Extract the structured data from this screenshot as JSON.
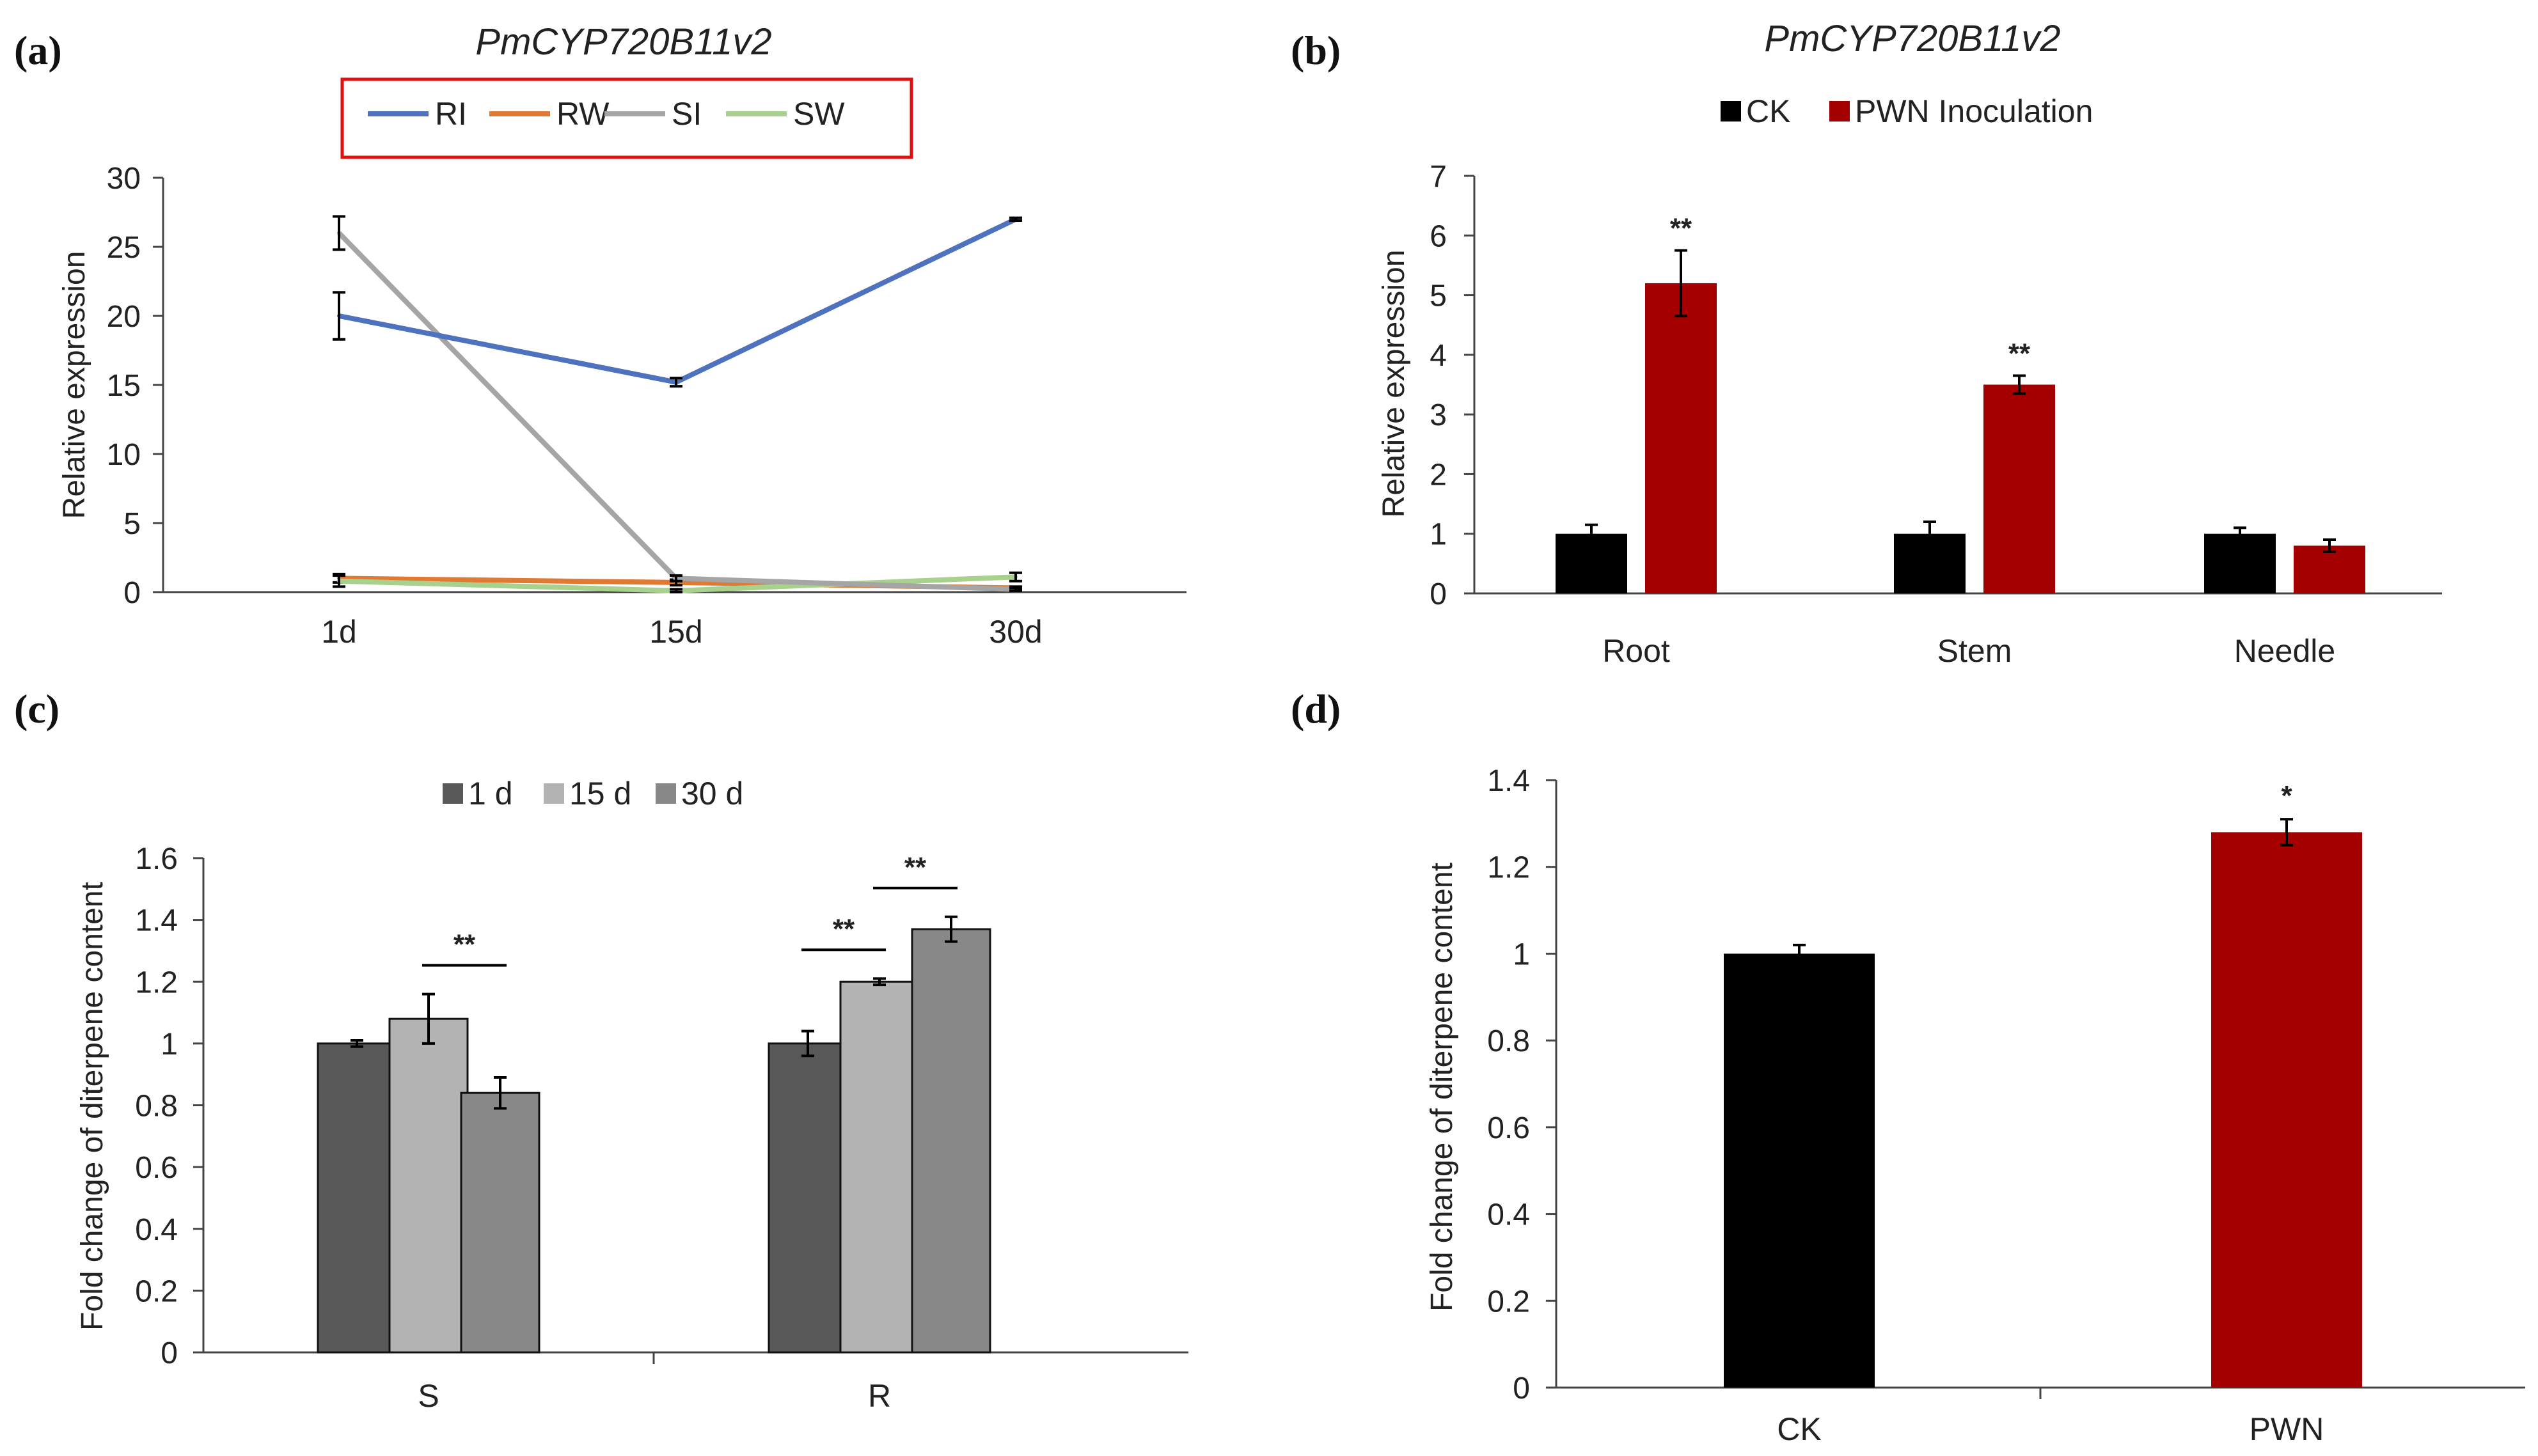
{
  "panels": {
    "a": "(a)",
    "b": "(b)",
    "c": "(c)",
    "d": "(d)"
  },
  "chart_data": [
    {
      "type": "line",
      "title": "PmCYP720B11v2",
      "xlabel": "",
      "ylabel": "Relative expression",
      "categories": [
        "1d",
        "15d",
        "30d"
      ],
      "ylim": [
        0,
        30
      ],
      "yticks": [
        0,
        5,
        10,
        15,
        20,
        25,
        30
      ],
      "legend_position": "top",
      "series": [
        {
          "name": "RI",
          "color": "#4f72be",
          "values": [
            20.0,
            15.2,
            27.0
          ],
          "errors": [
            1.7,
            0.3,
            0.1
          ]
        },
        {
          "name": "RW",
          "color": "#e07a33",
          "values": [
            1.0,
            0.7,
            0.3
          ],
          "errors": [
            0.3,
            0.2,
            0.1
          ]
        },
        {
          "name": "SI",
          "color": "#a5a5a5",
          "values": [
            26.0,
            1.0,
            0.2
          ],
          "errors": [
            1.2,
            0.2,
            0.1
          ]
        },
        {
          "name": "SW",
          "color": "#a9d18e",
          "values": [
            0.8,
            0.1,
            1.1
          ],
          "errors": [
            0.4,
            0.1,
            0.3
          ]
        }
      ]
    },
    {
      "type": "bar",
      "title": "PmCYP720B11v2",
      "xlabel": "",
      "ylabel": "Relative expression",
      "categories": [
        "Root",
        "Stem",
        "Needle"
      ],
      "ylim": [
        0,
        7
      ],
      "yticks": [
        0,
        1,
        2,
        3,
        4,
        5,
        6,
        7
      ],
      "legend_position": "top",
      "series": [
        {
          "name": "CK",
          "color": "#000000",
          "values": [
            1.0,
            1.0,
            1.0
          ],
          "errors": [
            0.15,
            0.2,
            0.1
          ]
        },
        {
          "name": "PWN Inoculation",
          "color": "#a50000",
          "values": [
            5.2,
            3.5,
            0.8
          ],
          "errors": [
            0.55,
            0.15,
            0.1
          ]
        }
      ],
      "annotations": [
        {
          "category": "Root",
          "series": "PWN Inoculation",
          "text": "**"
        },
        {
          "category": "Stem",
          "series": "PWN Inoculation",
          "text": "**"
        }
      ]
    },
    {
      "type": "bar",
      "title": "",
      "xlabel": "",
      "ylabel": "Fold change of diterpene content",
      "categories": [
        "S",
        "R"
      ],
      "ylim": [
        0,
        1.6
      ],
      "yticks": [
        "0",
        "0.2",
        "0.4",
        "0.6",
        "0.8",
        "1",
        "1.2",
        "1.4",
        "1.6"
      ],
      "legend_position": "top",
      "series": [
        {
          "name": "1 d",
          "color": "#595959",
          "values": [
            1.0,
            1.0
          ],
          "errors": [
            0.01,
            0.04
          ]
        },
        {
          "name": "15 d",
          "color": "#b3b3b3",
          "values": [
            1.08,
            1.2
          ],
          "errors": [
            0.08,
            0.01
          ]
        },
        {
          "name": "30 d",
          "color": "#888888",
          "values": [
            0.84,
            1.37
          ],
          "errors": [
            0.05,
            0.04
          ]
        }
      ],
      "annotations": [
        {
          "category": "S",
          "from": "15 d",
          "to": "30 d",
          "text": "**"
        },
        {
          "category": "R",
          "from": "1 d",
          "to": "15 d",
          "text": "**"
        },
        {
          "category": "R",
          "from": "15 d",
          "to": "30 d",
          "text": "**"
        }
      ]
    },
    {
      "type": "bar",
      "title": "",
      "xlabel": "",
      "ylabel": "Fold change of diterpene content",
      "categories": [
        "CK",
        "PWN"
      ],
      "ylim": [
        0,
        1.4
      ],
      "yticks": [
        "0",
        "0.2",
        "0.4",
        "0.6",
        "0.8",
        "1",
        "1.2",
        "1.4"
      ],
      "legend_position": "none",
      "series": [
        {
          "name": "",
          "colors": [
            "#000000",
            "#a50000"
          ],
          "values": [
            1.0,
            1.28
          ],
          "errors": [
            0.02,
            0.03
          ]
        }
      ],
      "annotations": [
        {
          "category": "PWN",
          "text": "*"
        }
      ]
    }
  ]
}
